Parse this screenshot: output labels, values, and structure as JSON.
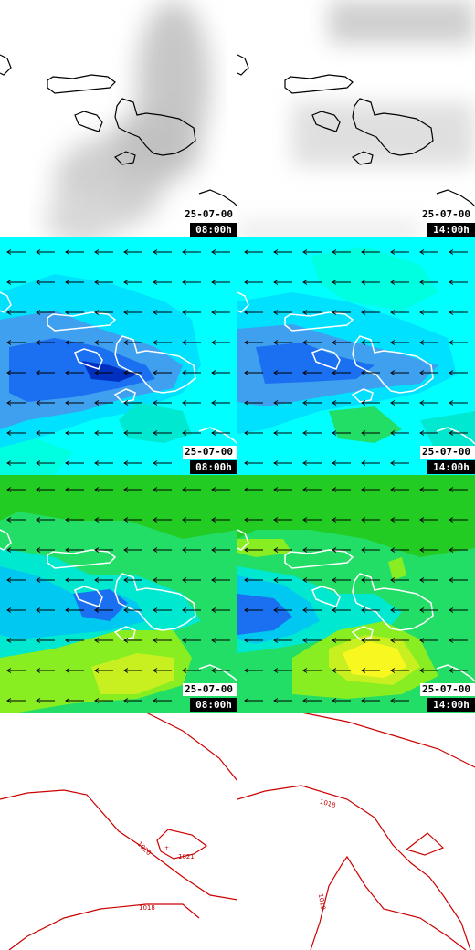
{
  "panels": {
    "row1": {
      "left": {
        "date": "25-07-00",
        "time": "08:00h"
      },
      "right": {
        "date": "25-07-00",
        "time": "14:00h"
      }
    },
    "row2": {
      "left": {
        "date": "25-07-00",
        "time": "08:00h"
      },
      "right": {
        "date": "25-07-00",
        "time": "14:00h"
      }
    },
    "row3": {
      "left": {
        "date": "25-07-00",
        "time": "08:00h"
      },
      "right": {
        "date": "25-07-00",
        "time": "14:00h"
      }
    }
  },
  "isobars": {
    "left": [
      "1020",
      "1021",
      "1018"
    ],
    "right": [
      "1018",
      "1019"
    ]
  },
  "colors": {
    "wind_low": "#00ffff",
    "wind_mid": "#00e0ff",
    "wind_strong": "#1a70f0",
    "wind_max": "#0030c0",
    "green": "#22dd66",
    "lime": "#88ee22",
    "yellow": "#f8f820",
    "isobar": "#cc0000",
    "coast": "#ffffff"
  },
  "icons": [
    "wind-arrow-icon"
  ]
}
